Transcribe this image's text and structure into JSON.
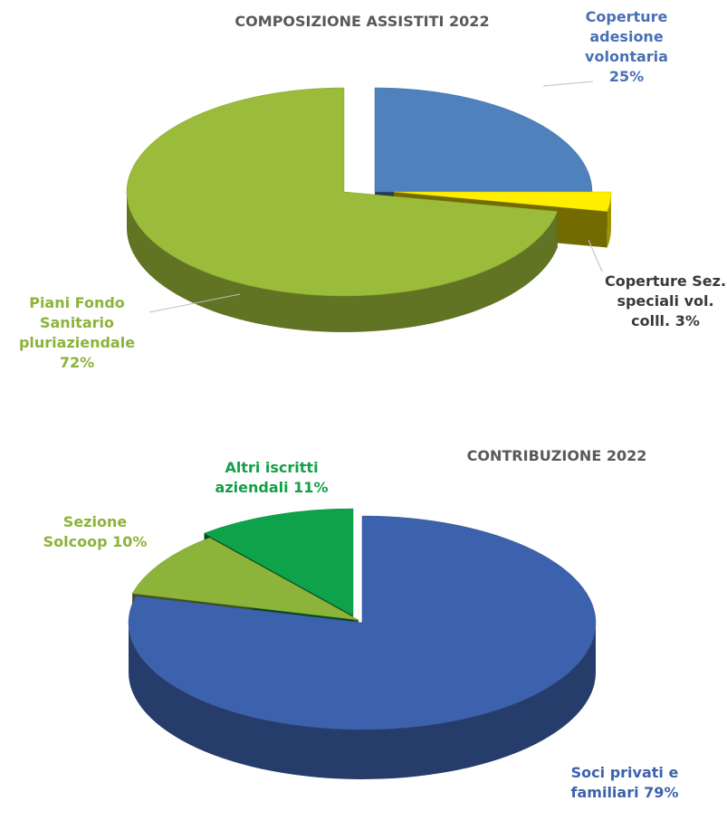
{
  "chart_data": [
    {
      "type": "pie",
      "title": "COMPOSIZIONE ASSISTITI 2022",
      "categories": [
        "Coperture adesione volontaria",
        "Coperture Sez. speciali vol. colll.",
        "Piani Fondo Sanitario pluriaziendale"
      ],
      "values": [
        25,
        3,
        72
      ],
      "value_labels": [
        "25%",
        "3%",
        "72%"
      ],
      "colors": [
        "#4f81bd",
        "#ffee00",
        "#9bbb3a"
      ],
      "label_colors": [
        "#4a6fb5",
        "#3a3a3a",
        "#8cb33a"
      ]
    },
    {
      "type": "pie",
      "title": "CONTRIBUZIONE 2022",
      "categories": [
        "Soci privati e familiari",
        "Sezione Solcoop",
        "Altri iscritti aziendali"
      ],
      "values": [
        79,
        10,
        11
      ],
      "value_labels": [
        "79%",
        "10%",
        "11%"
      ],
      "colors": [
        "#3d62ad",
        "#8cb33a",
        "#0ea24a"
      ],
      "label_colors": [
        "#3d62ad",
        "#8cb33a",
        "#14a048"
      ]
    }
  ]
}
